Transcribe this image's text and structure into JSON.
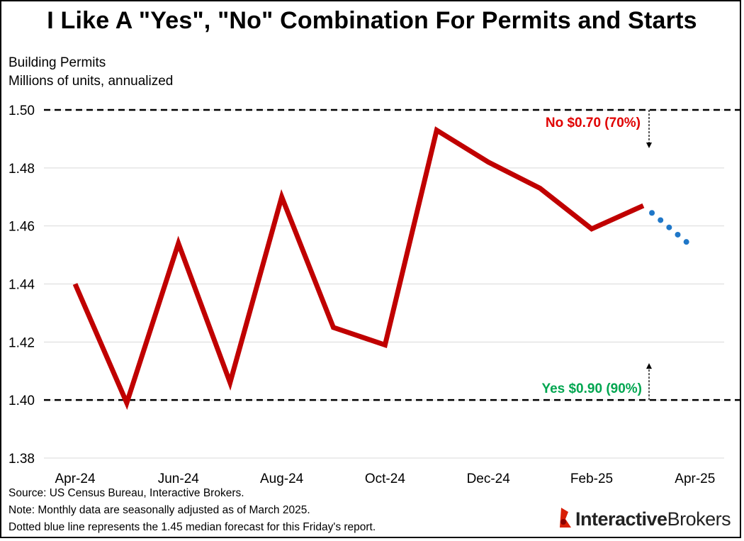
{
  "title": "I Like A \"Yes\", \"No\" Combination For Permits and Starts",
  "ylabel_line1": "Building Permits",
  "ylabel_line2": "Millions of units, annualized",
  "footnotes": [
    "Source: US Census Bureau, Interactive Brokers.",
    "Note: Monthly data are seasonally adjusted as of March 2025.",
    "Dotted blue line represents the 1.45 median forecast for this Friday's report."
  ],
  "logo": {
    "bold": "Interactive",
    "regular": "Brokers",
    "accent_color": "#d81e05"
  },
  "chart_data": {
    "type": "line",
    "x": [
      "Apr-24",
      "May-24",
      "Jun-24",
      "Jul-24",
      "Aug-24",
      "Sep-24",
      "Oct-24",
      "Nov-24",
      "Dec-24",
      "Jan-25",
      "Feb-25",
      "Mar-25",
      "Apr-25"
    ],
    "x_tick_labels": [
      "Apr-24",
      "Jun-24",
      "Aug-24",
      "Oct-24",
      "Dec-24",
      "Feb-25",
      "Apr-25"
    ],
    "y_ticks": [
      "1.38",
      "1.40",
      "1.42",
      "1.44",
      "1.46",
      "1.48",
      "1.50"
    ],
    "ylim": [
      1.38,
      1.5
    ],
    "grid": true,
    "series": [
      {
        "style": "solid",
        "color": "#c00000",
        "x": [
          "Apr-24",
          "May-24",
          "Jun-24",
          "Jul-24",
          "Aug-24",
          "Sep-24",
          "Oct-24",
          "Nov-24",
          "Dec-24",
          "Jan-25",
          "Feb-25",
          "Mar-25"
        ],
        "values": [
          1.44,
          1.399,
          1.454,
          1.406,
          1.47,
          1.425,
          1.419,
          1.493,
          1.482,
          1.473,
          1.459,
          1.467
        ]
      },
      {
        "style": "dotted",
        "color": "#1f77c8",
        "x": [
          "Mar-25",
          "Apr-25"
        ],
        "values": [
          1.467,
          1.452
        ]
      }
    ],
    "reference_lines": [
      {
        "y": 1.5,
        "label": "No $0.70 (70%)",
        "color": "#e00000",
        "arrow": "down"
      },
      {
        "y": 1.4,
        "label": "Yes $0.90 (90%)",
        "color": "#00a650",
        "arrow": "up"
      }
    ]
  }
}
